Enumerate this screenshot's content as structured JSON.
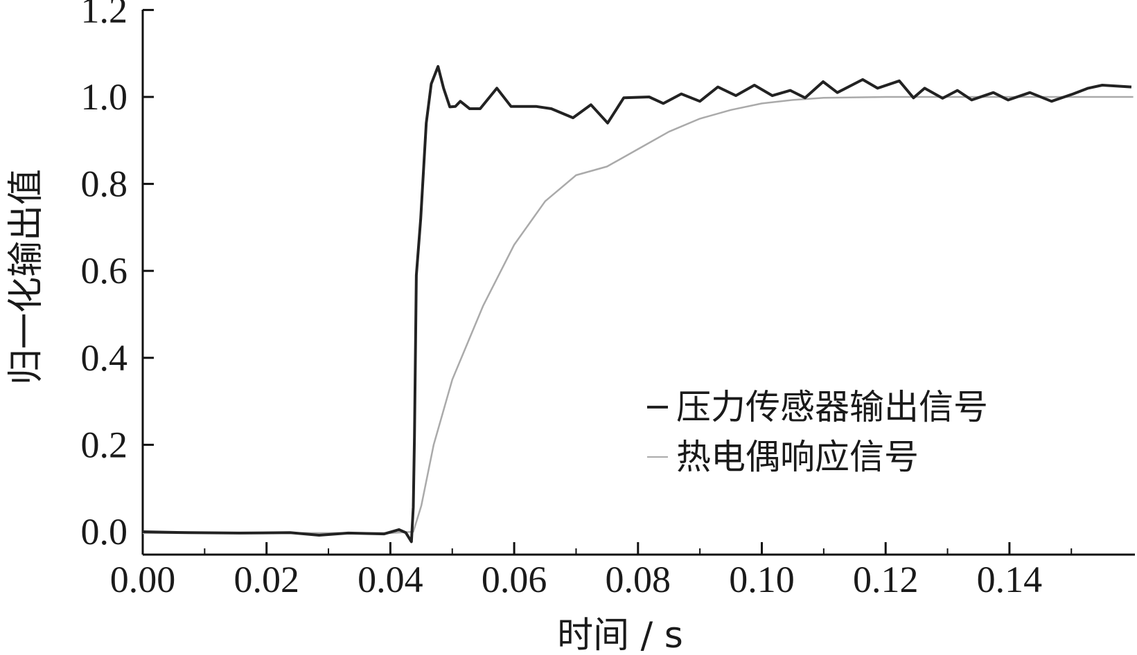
{
  "chart_data": {
    "type": "line",
    "title": "",
    "xlabel": "时间 / s",
    "ylabel": "归一化输出值",
    "xlim": [
      0,
      0.16
    ],
    "ylim": [
      -0.05,
      1.22
    ],
    "xticks": [
      "0.00",
      "0.02",
      "0.04",
      "0.06",
      "0.08",
      "0.10",
      "0.12",
      "0.14"
    ],
    "yticks": [
      "0.0",
      "0.2",
      "0.4",
      "0.6",
      "0.8",
      "1.0",
      "1.2"
    ],
    "grid": false,
    "legend_position": "center-right",
    "series": [
      {
        "name": "压力传感器输出信号",
        "color": "#222222",
        "x": [
          0,
          0.0074,
          0.0156,
          0.0238,
          0.0285,
          0.0332,
          0.039,
          0.0414,
          0.0425,
          0.0434,
          0.0437,
          0.0439,
          0.0442,
          0.0449,
          0.0458,
          0.0466,
          0.0477,
          0.0486,
          0.0496,
          0.0505,
          0.0513,
          0.0528,
          0.0545,
          0.0572,
          0.0595,
          0.0636,
          0.066,
          0.0695,
          0.0724,
          0.0751,
          0.0777,
          0.0818,
          0.0841,
          0.087,
          0.09,
          0.0929,
          0.0958,
          0.0988,
          0.1017,
          0.1046,
          0.107,
          0.1099,
          0.1122,
          0.1163,
          0.1187,
          0.1222,
          0.1245,
          0.1263,
          0.1292,
          0.1316,
          0.1339,
          0.1374,
          0.1398,
          0.1433,
          0.1468,
          0.1503,
          0.1527,
          0.155,
          0.1597
        ],
        "y": [
          0,
          -0.002,
          -0.003,
          -0.002,
          -0.008,
          -0.003,
          -0.005,
          0.005,
          -0.002,
          -0.023,
          0.057,
          0.22,
          0.59,
          0.72,
          0.94,
          1.03,
          1.07,
          1.02,
          0.977,
          0.978,
          0.99,
          0.973,
          0.973,
          1.02,
          0.978,
          0.978,
          0.973,
          0.952,
          0.982,
          0.94,
          0.998,
          1.0,
          0.985,
          1.007,
          0.99,
          1.023,
          1.003,
          1.027,
          1.003,
          1.015,
          0.998,
          1.035,
          1.01,
          1.04,
          1.02,
          1.037,
          0.998,
          1.02,
          0.997,
          1.015,
          0.993,
          1.01,
          0.993,
          1.01,
          0.99,
          1.007,
          1.02,
          1.027,
          1.023
        ]
      },
      {
        "name": "热电偶响应信号",
        "color": "#aaaaaa",
        "x": [
          0,
          0.02,
          0.04,
          0.0437,
          0.045,
          0.047,
          0.05,
          0.055,
          0.06,
          0.065,
          0.07,
          0.075,
          0.08,
          0.085,
          0.09,
          0.095,
          0.1,
          0.105,
          0.11,
          0.12,
          0.16
        ],
        "y": [
          -0.003,
          -0.003,
          -0.003,
          0,
          0.06,
          0.2,
          0.35,
          0.52,
          0.66,
          0.76,
          0.82,
          0.84,
          0.88,
          0.92,
          0.95,
          0.97,
          0.985,
          0.993,
          0.998,
          1.0,
          1.0
        ]
      }
    ]
  }
}
